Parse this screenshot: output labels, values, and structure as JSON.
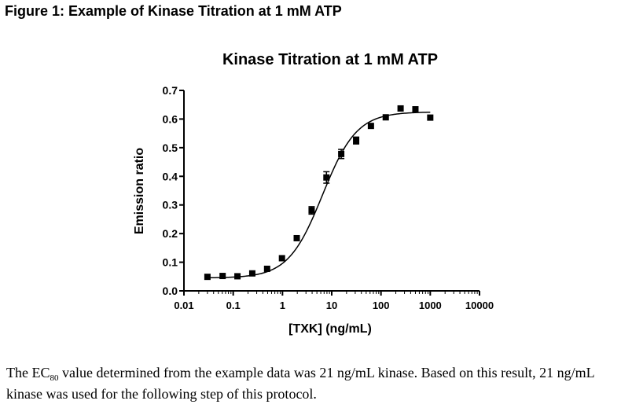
{
  "figure_caption": "Figure 1: Example of Kinase Titration at 1 mM ATP",
  "chart_data": {
    "type": "scatter",
    "title": "Kinase Titration at 1 mM ATP",
    "xlabel": "[TXK] (ng/mL)",
    "ylabel": "Emission ratio",
    "x_scale": "log",
    "xlim": [
      0.01,
      10000
    ],
    "ylim": [
      0.0,
      0.7
    ],
    "x_ticks": [
      "0.01",
      "0.1",
      "1",
      "10",
      "100",
      "1000",
      "10000"
    ],
    "y_ticks": [
      "0.0",
      "0.1",
      "0.2",
      "0.3",
      "0.4",
      "0.5",
      "0.6",
      "0.7"
    ],
    "grid": false,
    "legend": "none",
    "series": [
      {
        "points": [
          {
            "x": 0.03,
            "y": 0.049
          },
          {
            "x": 0.061,
            "y": 0.052
          },
          {
            "x": 0.122,
            "y": 0.051
          },
          {
            "x": 0.244,
            "y": 0.061
          },
          {
            "x": 0.488,
            "y": 0.077
          },
          {
            "x": 0.977,
            "y": 0.114
          },
          {
            "x": 1.95,
            "y": 0.184
          },
          {
            "x": 3.91,
            "y": 0.281,
            "err": 0.013
          },
          {
            "x": 7.81,
            "y": 0.396,
            "err": 0.02
          },
          {
            "x": 15.6,
            "y": 0.478,
            "err": 0.016
          },
          {
            "x": 31.3,
            "y": 0.525,
            "err": 0.012
          },
          {
            "x": 62.5,
            "y": 0.576
          },
          {
            "x": 125,
            "y": 0.606
          },
          {
            "x": 250,
            "y": 0.637
          },
          {
            "x": 500,
            "y": 0.634
          },
          {
            "x": 1000,
            "y": 0.605
          }
        ],
        "fit_curve": {
          "model": "sigmoidal dose-response",
          "bottom": 0.045,
          "top": 0.625,
          "ec50": 6.5,
          "hill": 1.25
        }
      }
    ]
  },
  "body_text": {
    "pre": "The EC",
    "sub": "80",
    "post": " value determined from the example data was 21 ng/mL kinase.  Based on this result, 21 ng/mL kinase was used for the following step of this protocol."
  }
}
